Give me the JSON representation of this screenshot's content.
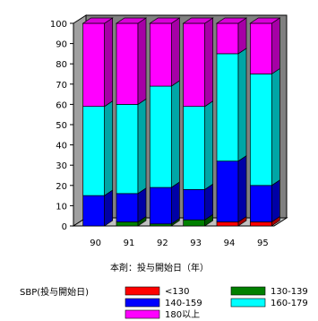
{
  "chart_data": {
    "type": "bar",
    "stacked": true,
    "three_d": true,
    "categories": [
      "90",
      "91",
      "92",
      "93",
      "94",
      "95"
    ],
    "series": [
      {
        "name": "<130",
        "color": "#ff0000",
        "values": [
          0,
          0,
          0,
          0,
          2,
          2
        ]
      },
      {
        "name": "130-139",
        "color": "#008000",
        "values": [
          0,
          2,
          1,
          3,
          0,
          0
        ]
      },
      {
        "name": "140-159",
        "color": "#0000ff",
        "values": [
          15,
          14,
          18,
          15,
          30,
          18
        ]
      },
      {
        "name": "160-179",
        "color": "#00ffff",
        "values": [
          44,
          44,
          50,
          41,
          53,
          55
        ]
      },
      {
        "name": "180以上",
        "color": "#ff00ff",
        "values": [
          41,
          40,
          31,
          41,
          15,
          25
        ]
      }
    ],
    "yticks": [
      0,
      10,
      20,
      30,
      40,
      50,
      60,
      70,
      80,
      90,
      100
    ],
    "ylim": [
      0,
      100
    ],
    "xlabel": "本剤：投与開始日（年）",
    "legend_title": "SBP(投与開始日)",
    "legend_position": "bottom",
    "wall_color": "#808080"
  }
}
